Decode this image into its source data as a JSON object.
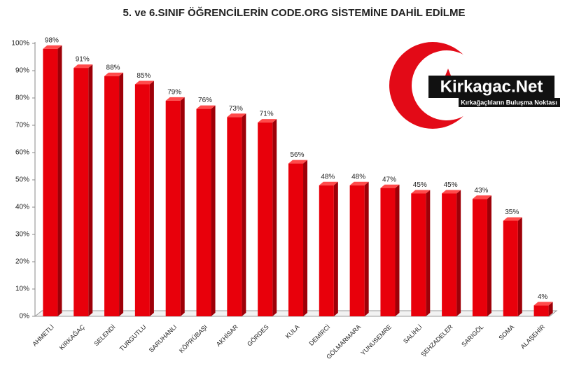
{
  "chart_data": {
    "type": "bar",
    "title": "5. ve 6.SINIF ÖĞRENCİLERİN CODE.ORG SİSTEMİNE DAHİL EDİLME",
    "categories": [
      "AHMETLİ",
      "KIRKAĞAÇ",
      "SELENDİ",
      "TURGUTLU",
      "SARUHANLI",
      "KÖPRÜBAŞI",
      "AKHİSAR",
      "GÖRDES",
      "KULA",
      "DEMİRCİ",
      "GÖLMARMARA",
      "YUNUSEMRE",
      "SALİHLİ",
      "ŞEHZADELER",
      "SARIGÖL",
      "SOMA",
      "ALAŞEHİR"
    ],
    "values": [
      98,
      91,
      88,
      85,
      79,
      76,
      73,
      71,
      56,
      48,
      48,
      47,
      45,
      45,
      43,
      35,
      4
    ],
    "value_labels": [
      "98%",
      "91%",
      "88%",
      "85%",
      "79%",
      "76%",
      "73%",
      "71%",
      "56%",
      "48%",
      "48%",
      "47%",
      "45%",
      "45%",
      "43%",
      "35%",
      "4%"
    ],
    "color": "#e8000b",
    "ylim": [
      0,
      100
    ],
    "yticks": [
      {
        "value": 0,
        "label": "0%"
      },
      {
        "value": 10,
        "label": "10%"
      },
      {
        "value": 20,
        "label": "20%"
      },
      {
        "value": 30,
        "label": "30%"
      },
      {
        "value": 40,
        "label": "40%"
      },
      {
        "value": 50,
        "label": "50%"
      },
      {
        "value": 60,
        "label": "60%"
      },
      {
        "value": 70,
        "label": "70%"
      },
      {
        "value": 80,
        "label": "80%"
      },
      {
        "value": 90,
        "label": "90%"
      },
      {
        "value": 100,
        "label": "100%"
      }
    ],
    "grid": false,
    "annotations": [
      "Kirkagac.Net",
      "Kırkağaçlıların Buluşma Noktası"
    ]
  }
}
